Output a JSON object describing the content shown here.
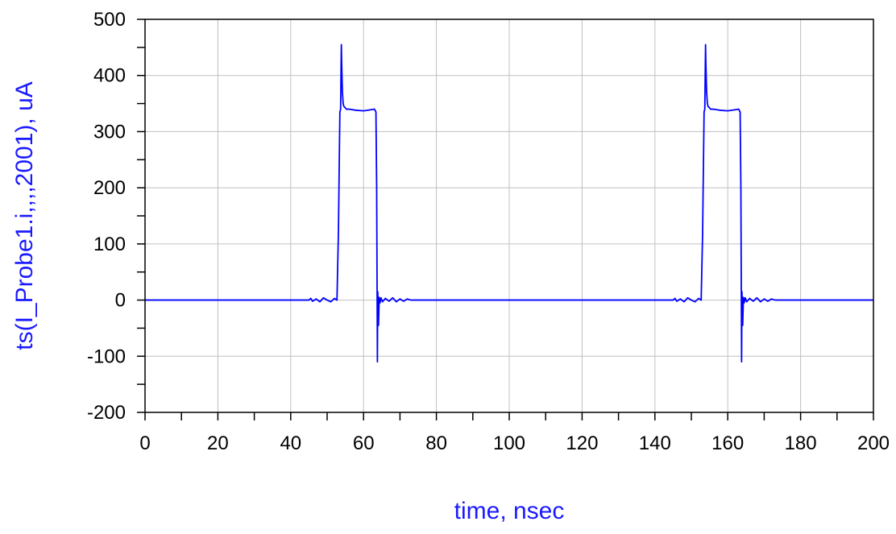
{
  "chart_data": {
    "type": "line",
    "xlabel": "time, nsec",
    "ylabel": "ts(I_Probe1.i,,,,2001), uA",
    "xlim": [
      0,
      200
    ],
    "ylim": [
      -200,
      500
    ],
    "x_ticks": [
      0,
      20,
      40,
      60,
      80,
      100,
      120,
      140,
      160,
      180,
      200
    ],
    "y_ticks": [
      -200,
      -100,
      0,
      100,
      200,
      300,
      400,
      500
    ],
    "grid": true,
    "series_color": "#0000ff",
    "series": [
      {
        "x": [
          0,
          45,
          45.5,
          46,
          47,
          48,
          49,
          50,
          51,
          52,
          52.7,
          53.1,
          53.3,
          53.5,
          53.7,
          53.9,
          54,
          54.2,
          54.4,
          54.6,
          54.9,
          55.3,
          56,
          58,
          60,
          62,
          63,
          63.4,
          63.6,
          63.8,
          63.9,
          64.1,
          64.3,
          64.5,
          64.8,
          65.2,
          66,
          67,
          68,
          69,
          70,
          71,
          72,
          73,
          145,
          145.5,
          146,
          147,
          148,
          149,
          150,
          151,
          152,
          152.7,
          153.1,
          153.3,
          153.5,
          153.7,
          153.9,
          154,
          154.2,
          154.4,
          154.6,
          154.9,
          155.3,
          156,
          158,
          160,
          162,
          163,
          163.4,
          163.6,
          163.8,
          163.9,
          164.1,
          164.3,
          164.5,
          164.8,
          165.2,
          166,
          167,
          168,
          169,
          170,
          171,
          172,
          173,
          200
        ],
        "y": [
          0,
          0,
          3,
          -2,
          2,
          -3,
          4,
          0,
          -3,
          3,
          0,
          120,
          230,
          335,
          340,
          455,
          420,
          370,
          350,
          345,
          343,
          340,
          340,
          338,
          337,
          339,
          340,
          335,
          200,
          -110,
          15,
          -45,
          5,
          -5,
          4,
          -3,
          3,
          -2,
          4,
          -3,
          2,
          -2,
          2,
          0,
          0,
          3,
          -2,
          2,
          -3,
          4,
          0,
          -3,
          3,
          0,
          120,
          230,
          335,
          340,
          455,
          420,
          370,
          350,
          345,
          343,
          340,
          340,
          338,
          337,
          339,
          340,
          335,
          200,
          -110,
          15,
          -45,
          5,
          -5,
          4,
          -3,
          3,
          -2,
          4,
          -3,
          2,
          -2,
          2,
          0,
          0
        ]
      }
    ]
  }
}
